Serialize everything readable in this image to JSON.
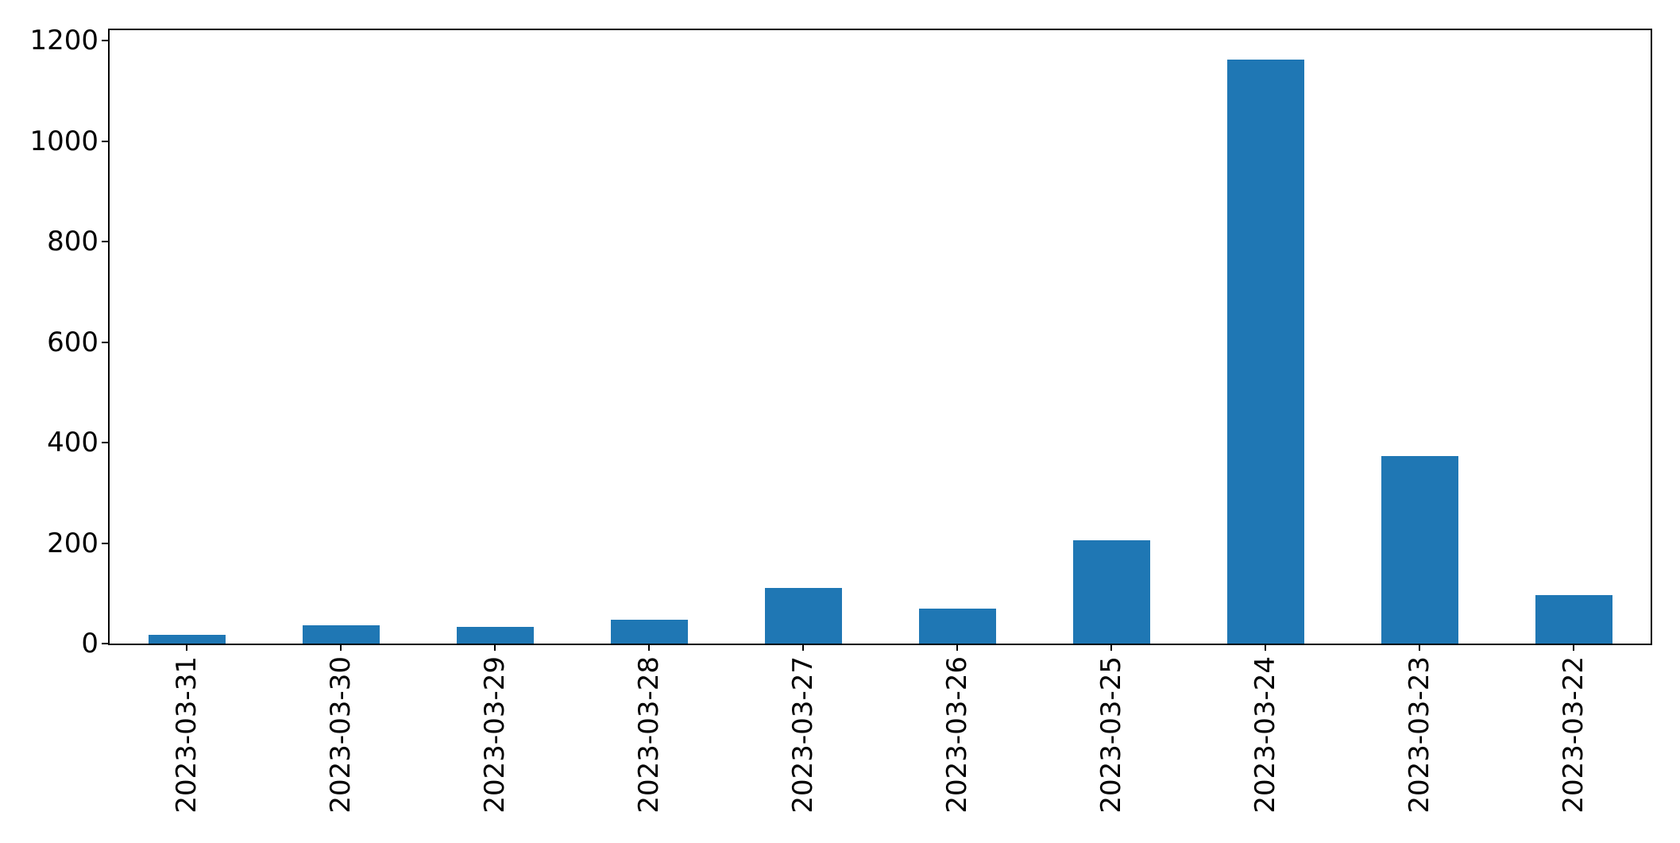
{
  "chart_data": {
    "type": "bar",
    "title": "",
    "xlabel": "",
    "ylabel": "",
    "categories": [
      "2023-03-31",
      "2023-03-30",
      "2023-03-29",
      "2023-03-28",
      "2023-03-27",
      "2023-03-26",
      "2023-03-25",
      "2023-03-24",
      "2023-03-23",
      "2023-03-22"
    ],
    "values": [
      17,
      37,
      34,
      48,
      110,
      70,
      205,
      1163,
      373,
      96
    ],
    "ylim": [
      0,
      1221
    ],
    "yticks": [
      0,
      200,
      400,
      600,
      800,
      1000,
      1200
    ],
    "x_tick_rotation_deg": 90,
    "grid": false,
    "legend": null,
    "bar_color": "#1f77b4",
    "axis_color": "#000000",
    "background_color": "#ffffff"
  }
}
